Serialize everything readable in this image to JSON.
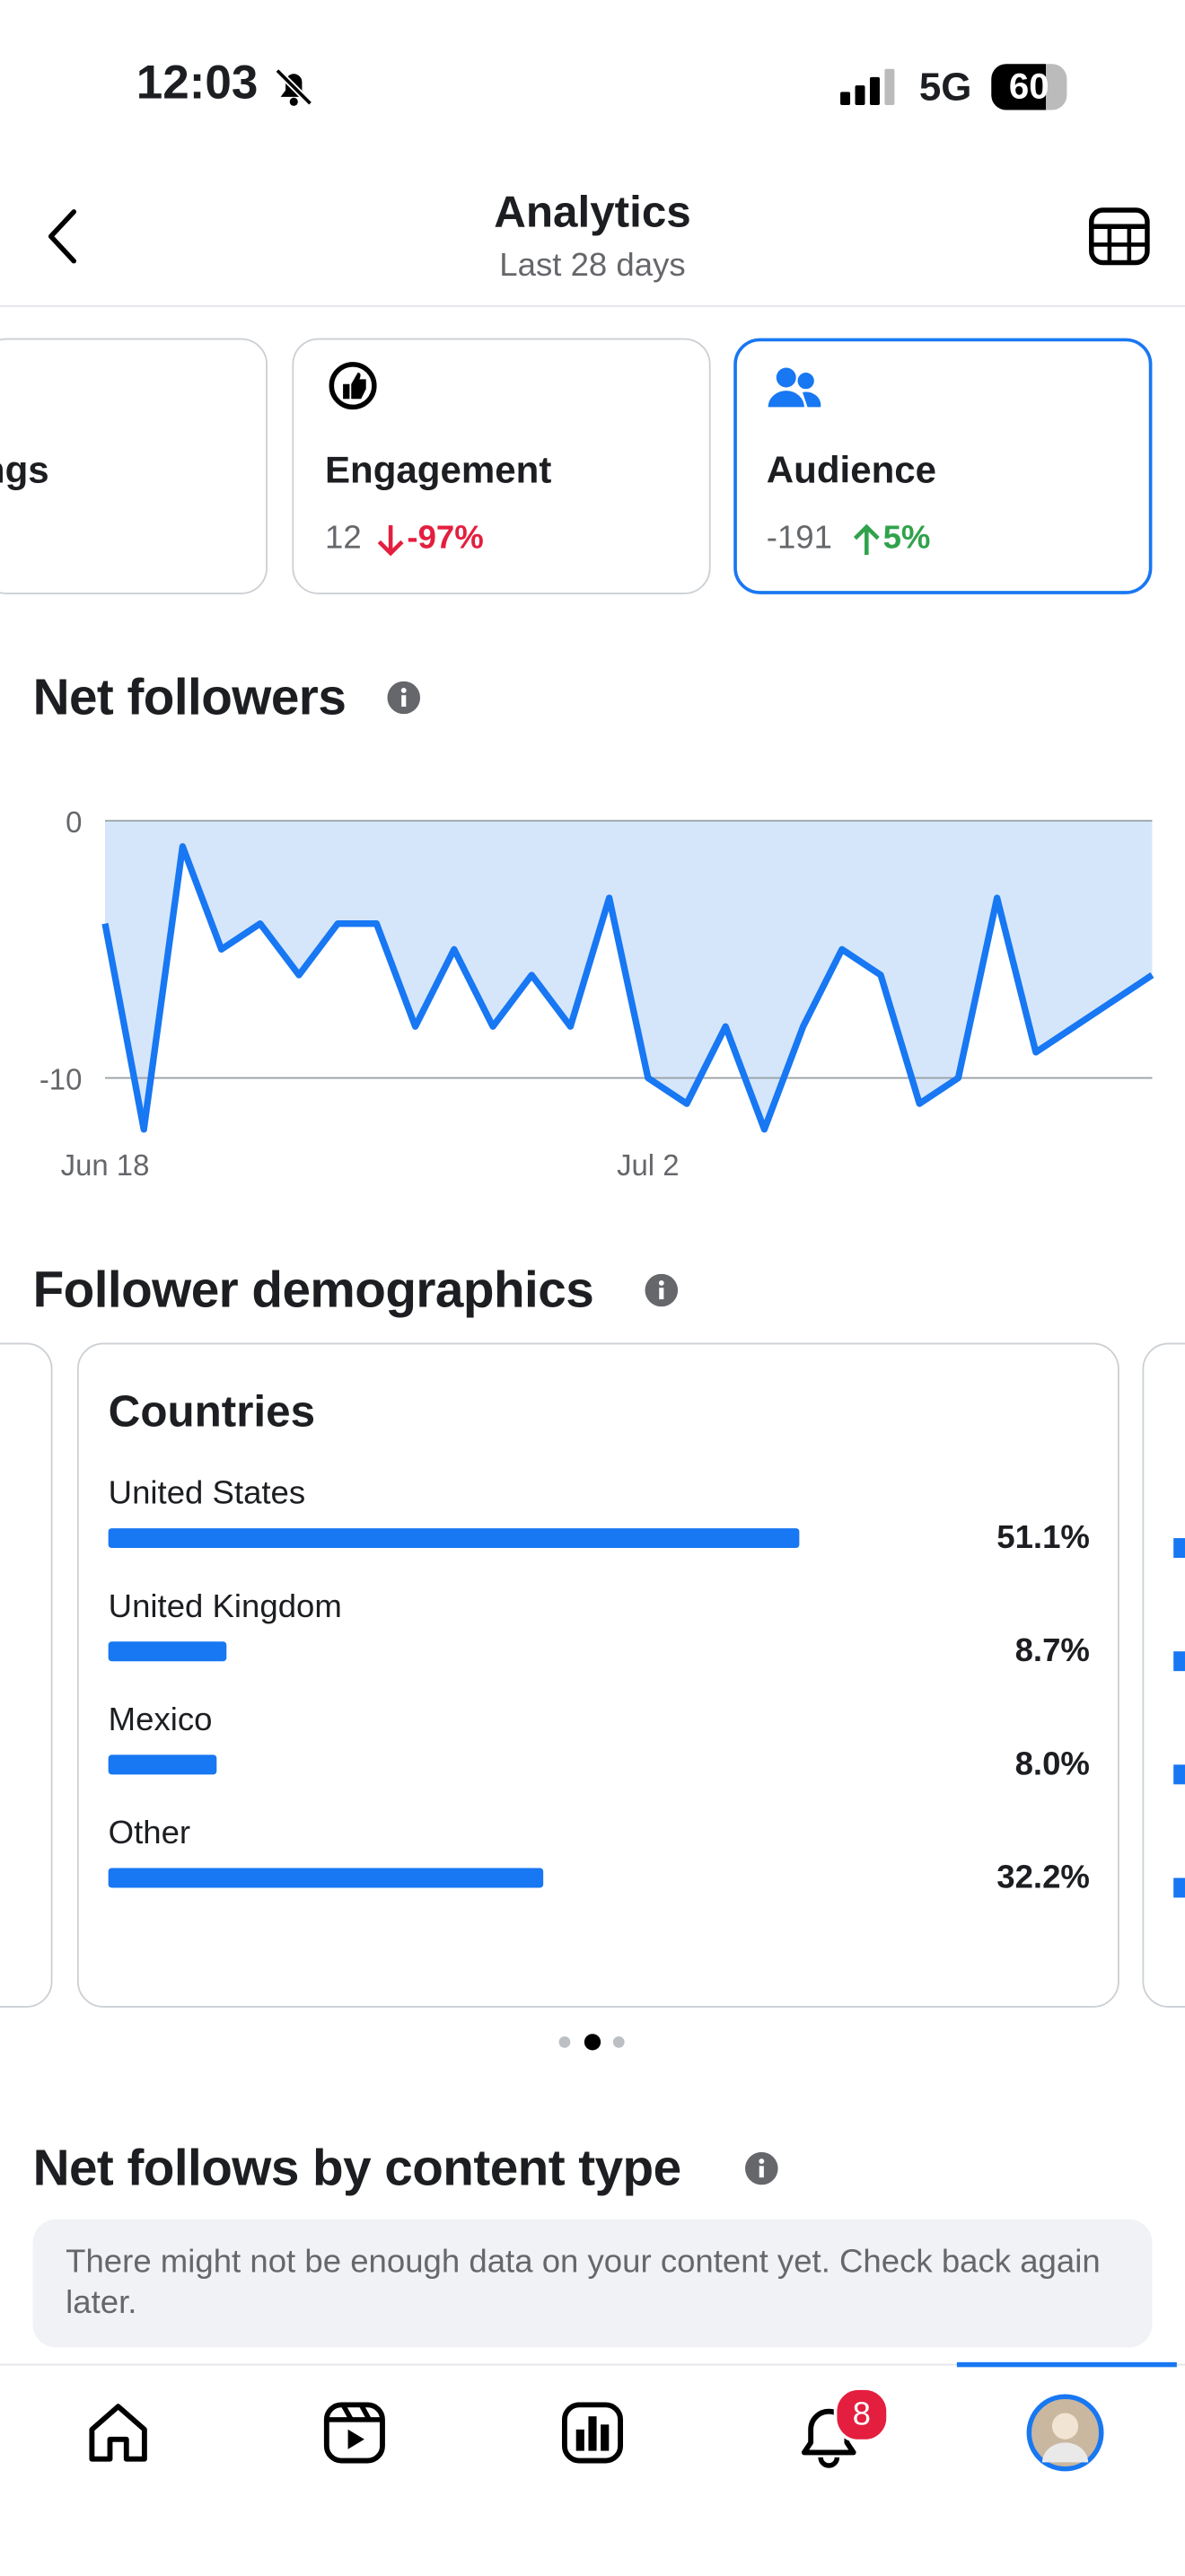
{
  "status_bar": {
    "time": "12:03",
    "network": "5G",
    "battery": "60"
  },
  "header": {
    "title": "Analytics",
    "subtitle": "Last 28 days"
  },
  "tabs": [
    {
      "label": "ngs"
    },
    {
      "label": "Engagement",
      "value": "12",
      "change": "-97%"
    },
    {
      "label": "Audience",
      "value": "-191",
      "change": "5%"
    }
  ],
  "sections": {
    "demographics": "Follower demographics",
    "content_type": "Net follows by content type",
    "content_message": "There might not be enough data on your content yet. Check back again later."
  },
  "nav": {
    "badge": "8"
  },
  "chart_data": [
    {
      "type": "line",
      "title": "Net followers",
      "categories": [
        "Jun 18",
        null,
        null,
        null,
        null,
        null,
        null,
        null,
        null,
        null,
        null,
        null,
        null,
        null,
        "Jul 2",
        null,
        null,
        null,
        null,
        null,
        null,
        null,
        null,
        null,
        null,
        null,
        null,
        null
      ],
      "values": [
        -4,
        -12,
        -1,
        -5,
        -4,
        -6,
        -4,
        -4,
        -8,
        -5,
        -8,
        -6,
        -8,
        -3,
        -10,
        -11,
        -8,
        -12,
        -8,
        -5,
        -6,
        -11,
        -10,
        -3,
        -9,
        -8,
        -7,
        -6
      ],
      "color": "#1877f2",
      "area_color": "#d5e6fb",
      "ylim": [
        -12,
        0
      ],
      "yticks": [
        0,
        -10
      ],
      "grid": true
    },
    {
      "type": "hbar",
      "title": "Countries",
      "categories": [
        "United States",
        "United Kingdom",
        "Mexico",
        "Other"
      ],
      "values": [
        51.1,
        8.7,
        8.0,
        32.2
      ],
      "value_labels": [
        "51.1%",
        "8.7%",
        "8.0%",
        "32.2%"
      ],
      "color": "#1877f2"
    }
  ]
}
